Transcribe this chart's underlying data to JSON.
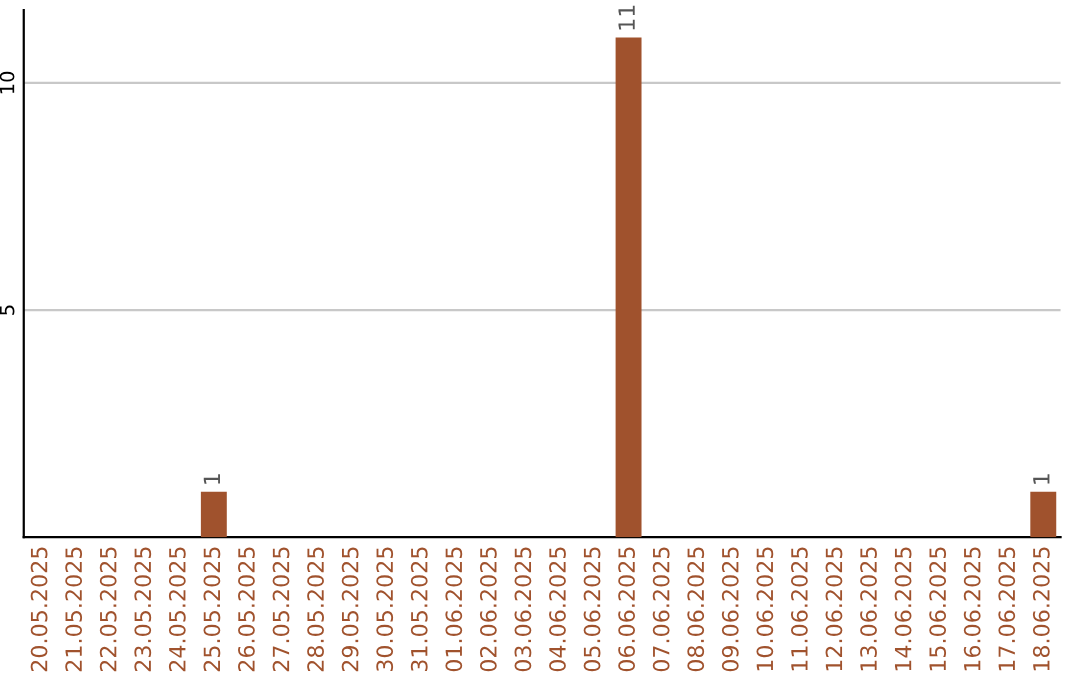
{
  "chart_data": {
    "type": "bar",
    "categories": [
      "20.05.2025",
      "21.05.2025",
      "22.05.2025",
      "23.05.2025",
      "24.05.2025",
      "25.05.2025",
      "26.05.2025",
      "27.05.2025",
      "28.05.2025",
      "29.05.2025",
      "30.05.2025",
      "31.05.2025",
      "01.06.2025",
      "02.06.2025",
      "03.06.2025",
      "04.06.2025",
      "05.06.2025",
      "06.06.2025",
      "07.06.2025",
      "08.06.2025",
      "09.06.2025",
      "10.06.2025",
      "11.06.2025",
      "12.06.2025",
      "13.06.2025",
      "14.06.2025",
      "15.06.2025",
      "16.06.2025",
      "17.06.2025",
      "18.06.2025"
    ],
    "values": [
      0,
      0,
      0,
      0,
      0,
      1,
      0,
      0,
      0,
      0,
      0,
      0,
      0,
      0,
      0,
      0,
      0,
      11,
      0,
      0,
      0,
      0,
      0,
      0,
      0,
      0,
      0,
      0,
      0,
      1
    ],
    "value_labels": [
      null,
      null,
      null,
      null,
      null,
      "1",
      null,
      null,
      null,
      null,
      null,
      null,
      null,
      null,
      null,
      null,
      null,
      "11",
      null,
      null,
      null,
      null,
      null,
      null,
      null,
      null,
      null,
      null,
      null,
      "1"
    ],
    "color": "#a0522d",
    "ylim": [
      0,
      11.6
    ],
    "yticks": [
      5,
      10
    ],
    "grid": "y"
  }
}
